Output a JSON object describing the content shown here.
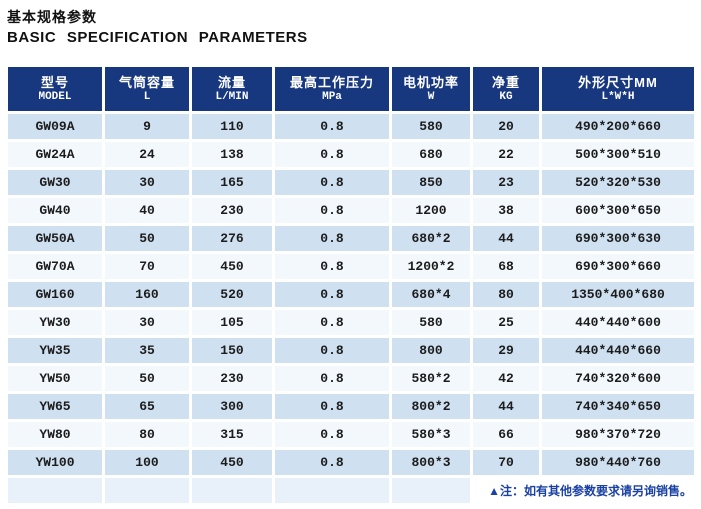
{
  "title": {
    "cn": "基本规格参数",
    "en": "BASIC SPECIFICATION PARAMETERS"
  },
  "table": {
    "columns": [
      {
        "cn": "型号",
        "sub": "MODEL"
      },
      {
        "cn": "气筒容量",
        "sub": "L"
      },
      {
        "cn": "流量",
        "sub": "L/MIN"
      },
      {
        "cn": "最高工作压力",
        "sub": "MPa"
      },
      {
        "cn": "电机功率",
        "sub": "W"
      },
      {
        "cn": "净重",
        "sub": "KG"
      },
      {
        "cn": "外形尺寸MM",
        "sub": "L*W*H"
      }
    ],
    "rows": [
      [
        "GW09A",
        "9",
        "110",
        "0.8",
        "580",
        "20",
        "490*200*660"
      ],
      [
        "GW24A",
        "24",
        "138",
        "0.8",
        "680",
        "22",
        "500*300*510"
      ],
      [
        "GW30",
        "30",
        "165",
        "0.8",
        "850",
        "23",
        "520*320*530"
      ],
      [
        "GW40",
        "40",
        "230",
        "0.8",
        "1200",
        "38",
        "600*300*650"
      ],
      [
        "GW50A",
        "50",
        "276",
        "0.8",
        "680*2",
        "44",
        "690*300*630"
      ],
      [
        "GW70A",
        "70",
        "450",
        "0.8",
        "1200*2",
        "68",
        "690*300*660"
      ],
      [
        "GW160",
        "160",
        "520",
        "0.8",
        "680*4",
        "80",
        "1350*400*680"
      ],
      [
        "YW30",
        "30",
        "105",
        "0.8",
        "580",
        "25",
        "440*440*600"
      ],
      [
        "YW35",
        "35",
        "150",
        "0.8",
        "800",
        "29",
        "440*440*660"
      ],
      [
        "YW50",
        "50",
        "230",
        "0.8",
        "580*2",
        "42",
        "740*320*600"
      ],
      [
        "YW65",
        "65",
        "300",
        "0.8",
        "800*2",
        "44",
        "740*340*650"
      ],
      [
        "YW80",
        "80",
        "315",
        "0.8",
        "580*3",
        "66",
        "980*370*720"
      ],
      [
        "YW100",
        "100",
        "450",
        "0.8",
        "800*3",
        "70",
        "980*440*760"
      ]
    ]
  },
  "note": "▲注：如有其他参数要求请另询销售。",
  "colors": {
    "header_bg": "#17377f",
    "row_odd": "#cfe0f1",
    "row_even": "#f3f8fd",
    "footer_empty_bg": "#e8f1fa",
    "note_color": "#1b41a3",
    "text_color": "#1c1c1c"
  }
}
